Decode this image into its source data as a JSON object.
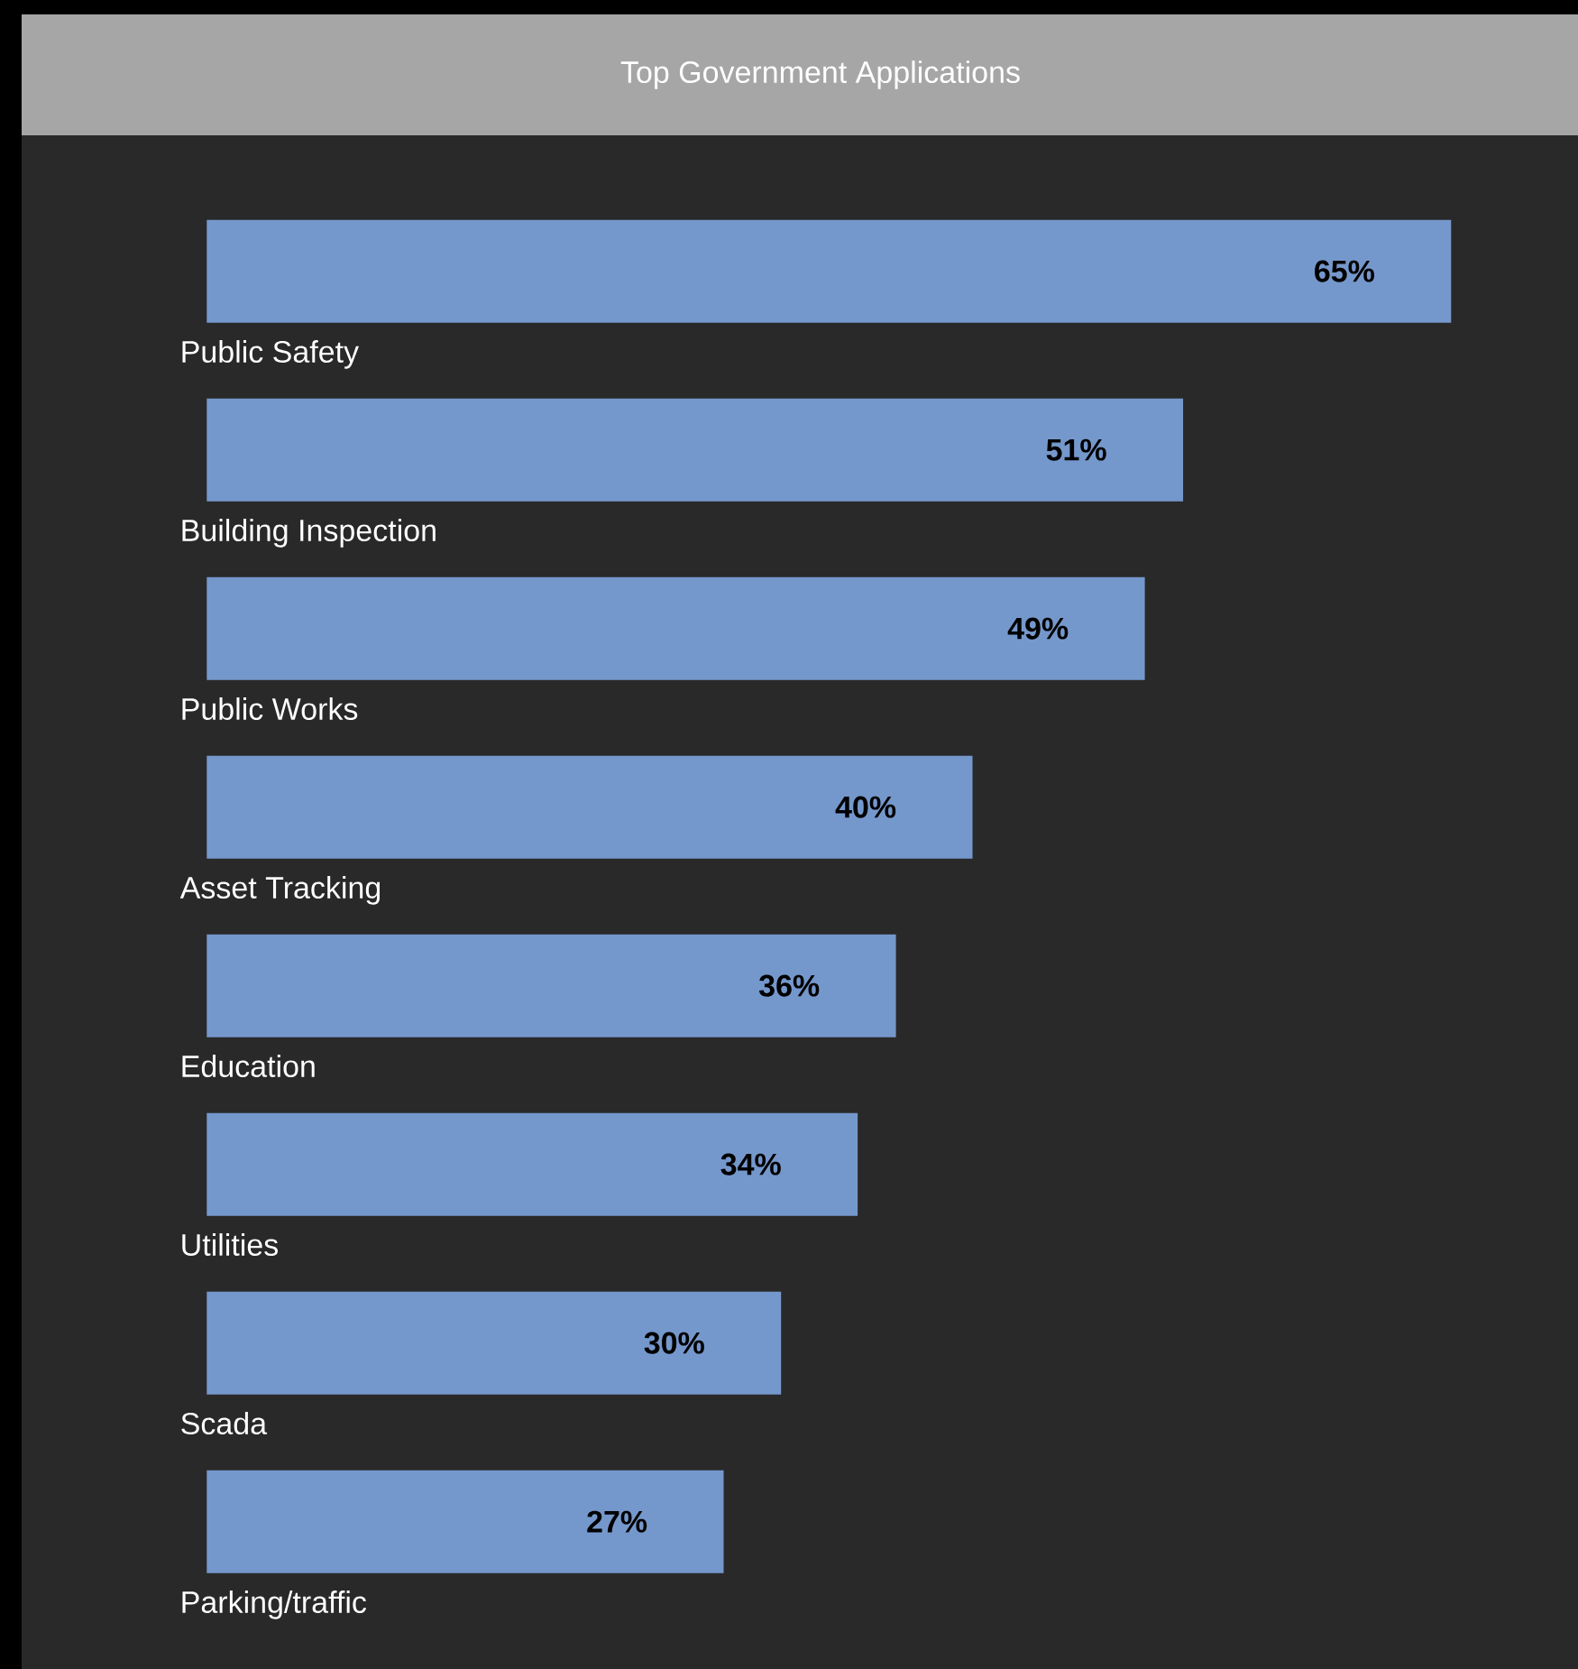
{
  "chart_data": {
    "type": "bar",
    "orientation": "horizontal",
    "title": "Top Government Applications",
    "categories": [
      "Public Safety",
      "Building Inspection",
      "Public Works",
      "Asset Tracking",
      "Education",
      "Utilities",
      "Scada",
      "Parking/traffic"
    ],
    "values": [
      65,
      51,
      49,
      40,
      36,
      34,
      30,
      27
    ],
    "value_labels": [
      "65%",
      "51%",
      "49%",
      "40%",
      "36%",
      "34%",
      "30%",
      "27%"
    ],
    "color": "#7598cc",
    "tick_labels": false
  }
}
